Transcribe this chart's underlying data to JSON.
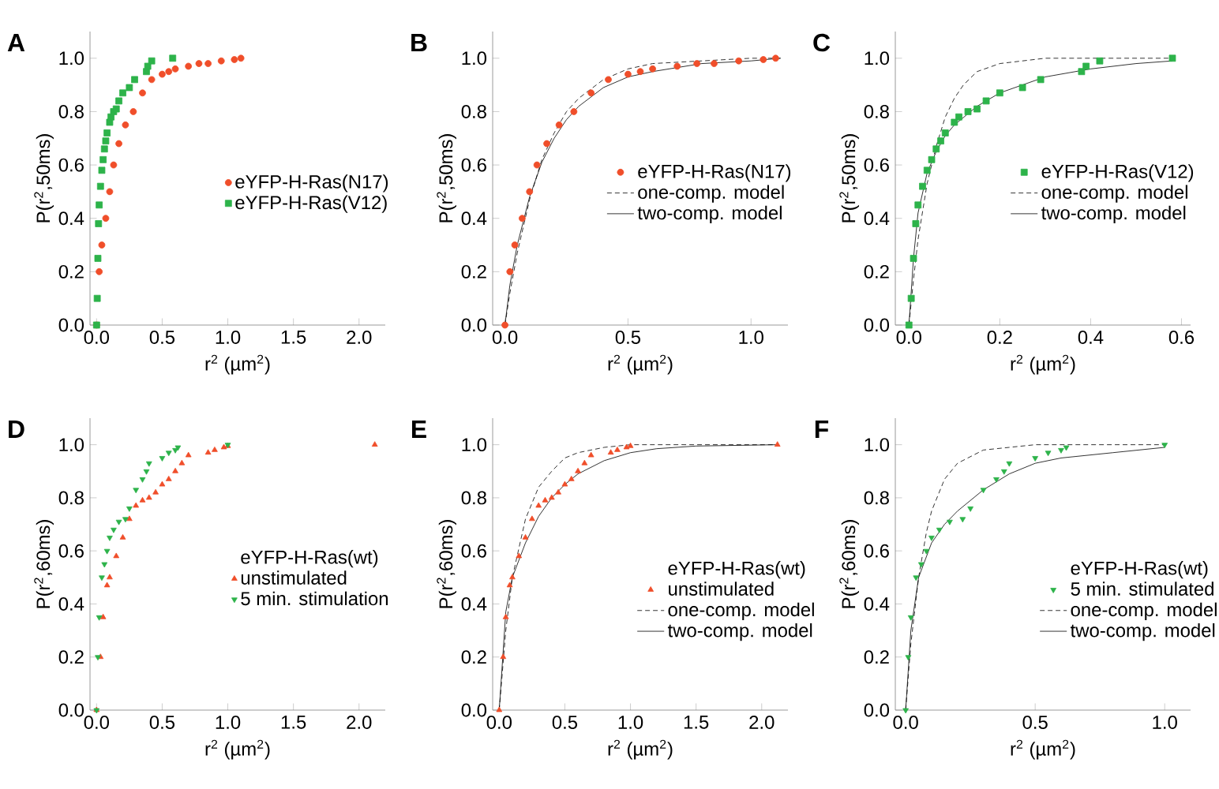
{
  "chart_data": [
    {
      "type": "scatter",
      "title": "A",
      "xlabel": "r$^{2}$ (µm$^{2}$)",
      "ylabel": "P(r$^{2}$,50ms)",
      "xlim": [
        -0.05,
        2.2
      ],
      "ylim": [
        0,
        1.1
      ],
      "legend": "right",
      "xticks": [
        {
          "value": 0,
          "label": "0.0"
        },
        {
          "value": 0.5,
          "label": "0.5"
        },
        {
          "value": 1,
          "label": "1.0"
        },
        {
          "value": 1.5,
          "label": "1.5"
        },
        {
          "value": 2,
          "label": "2.0"
        }
      ],
      "yticks": [
        {
          "value": 0,
          "label": "0.0"
        },
        {
          "value": 0.2,
          "label": "0.2"
        },
        {
          "value": 0.4,
          "label": "0.4"
        },
        {
          "value": 0.6,
          "label": "0.6"
        },
        {
          "value": 0.8,
          "label": "0.8"
        },
        {
          "value": 1,
          "label": "1.0"
        }
      ],
      "series": [
        {
          "name": "eYFP-H-Ras(N17)",
          "type": "scatter",
          "color": "#f04e2a",
          "marker": "circle",
          "x": [
            0.0,
            0.02,
            0.04,
            0.07,
            0.1,
            0.13,
            0.17,
            0.22,
            0.28,
            0.35,
            0.42,
            0.5,
            0.55,
            0.6,
            0.7,
            0.78,
            0.85,
            0.95,
            1.05,
            1.1
          ],
          "values": [
            0,
            0.2,
            0.3,
            0.4,
            0.5,
            0.6,
            0.68,
            0.75,
            0.8,
            0.87,
            0.92,
            0.94,
            0.95,
            0.96,
            0.97,
            0.98,
            0.98,
            0.99,
            0.995,
            1.0
          ]
        },
        {
          "name": "eYFP-H-Ras(V12)",
          "type": "scatter",
          "color": "#2db34a",
          "marker": "square",
          "x": [
            0.0,
            0.005,
            0.01,
            0.015,
            0.02,
            0.03,
            0.04,
            0.05,
            0.06,
            0.07,
            0.08,
            0.1,
            0.11,
            0.13,
            0.15,
            0.17,
            0.2,
            0.25,
            0.29,
            0.38,
            0.39,
            0.42,
            0.58
          ],
          "values": [
            0,
            0.1,
            0.25,
            0.38,
            0.45,
            0.52,
            0.58,
            0.62,
            0.66,
            0.69,
            0.72,
            0.76,
            0.78,
            0.8,
            0.81,
            0.84,
            0.87,
            0.89,
            0.92,
            0.95,
            0.97,
            0.99,
            1.0
          ]
        }
      ]
    },
    {
      "type": "scatter",
      "title": "B",
      "xlabel": "r$^{2}$ (µm$^{2}$)",
      "ylabel": "P(r$^{2}$,50ms)",
      "xlim": [
        -0.05,
        1.15
      ],
      "ylim": [
        0,
        1.1
      ],
      "legend": "right",
      "xticks": [
        {
          "value": 0,
          "label": "0.0"
        },
        {
          "value": 0.5,
          "label": "0.5"
        },
        {
          "value": 1,
          "label": "1.0"
        }
      ],
      "yticks": [
        {
          "value": 0,
          "label": "0.0"
        },
        {
          "value": 0.2,
          "label": "0.2"
        },
        {
          "value": 0.4,
          "label": "0.4"
        },
        {
          "value": 0.6,
          "label": "0.6"
        },
        {
          "value": 0.8,
          "label": "0.8"
        },
        {
          "value": 1,
          "label": "1.0"
        }
      ],
      "series": [
        {
          "name": "eYFP-H-Ras(N17)",
          "type": "scatter",
          "color": "#f04e2a",
          "marker": "circle",
          "x": [
            0.0,
            0.02,
            0.04,
            0.07,
            0.1,
            0.13,
            0.17,
            0.22,
            0.28,
            0.35,
            0.42,
            0.5,
            0.55,
            0.6,
            0.7,
            0.78,
            0.85,
            0.95,
            1.05,
            1.1
          ],
          "values": [
            0,
            0.2,
            0.3,
            0.4,
            0.5,
            0.6,
            0.68,
            0.75,
            0.8,
            0.87,
            0.92,
            0.94,
            0.95,
            0.96,
            0.97,
            0.98,
            0.98,
            0.99,
            0.995,
            1.0
          ]
        },
        {
          "name": "one-comp. model",
          "type": "line",
          "color": "#000000",
          "line_style": "dashed",
          "marker": "none",
          "x": [
            0,
            0.02,
            0.05,
            0.1,
            0.15,
            0.2,
            0.25,
            0.3,
            0.4,
            0.5,
            0.6,
            0.8,
            1.0,
            1.12
          ],
          "values": [
            0,
            0.12,
            0.27,
            0.47,
            0.62,
            0.72,
            0.8,
            0.85,
            0.92,
            0.96,
            0.98,
            0.99,
            1.0,
            1.0
          ]
        },
        {
          "name": "two-comp. model",
          "type": "line",
          "color": "#000000",
          "line_style": "solid",
          "marker": "none",
          "x": [
            0,
            0.02,
            0.05,
            0.1,
            0.15,
            0.2,
            0.25,
            0.3,
            0.4,
            0.5,
            0.6,
            0.8,
            1.0,
            1.12
          ],
          "values": [
            0,
            0.15,
            0.3,
            0.48,
            0.61,
            0.7,
            0.77,
            0.82,
            0.89,
            0.93,
            0.95,
            0.98,
            0.99,
            1.0
          ]
        }
      ]
    },
    {
      "type": "scatter",
      "title": "C",
      "xlabel": "r$^{2}$ (µm$^{2}$)",
      "ylabel": "P(r$^{2}$,50ms)",
      "xlim": [
        -0.03,
        0.62
      ],
      "ylim": [
        0,
        1.1
      ],
      "legend": "right",
      "xticks": [
        {
          "value": 0,
          "label": "0.0"
        },
        {
          "value": 0.2,
          "label": "0.2"
        },
        {
          "value": 0.4,
          "label": "0.4"
        },
        {
          "value": 0.6,
          "label": "0.6"
        }
      ],
      "yticks": [
        {
          "value": 0,
          "label": "0.0"
        },
        {
          "value": 0.2,
          "label": "0.2"
        },
        {
          "value": 0.4,
          "label": "0.4"
        },
        {
          "value": 0.6,
          "label": "0.6"
        },
        {
          "value": 0.8,
          "label": "0.8"
        },
        {
          "value": 1,
          "label": "1.0"
        }
      ],
      "series": [
        {
          "name": "eYFP-H-Ras(V12)",
          "type": "scatter",
          "color": "#2db34a",
          "marker": "square",
          "x": [
            0.0,
            0.005,
            0.01,
            0.015,
            0.02,
            0.03,
            0.04,
            0.05,
            0.06,
            0.07,
            0.08,
            0.1,
            0.11,
            0.13,
            0.15,
            0.17,
            0.2,
            0.25,
            0.29,
            0.38,
            0.39,
            0.42,
            0.58
          ],
          "values": [
            0,
            0.1,
            0.25,
            0.38,
            0.45,
            0.52,
            0.58,
            0.62,
            0.66,
            0.69,
            0.72,
            0.76,
            0.78,
            0.8,
            0.81,
            0.84,
            0.87,
            0.89,
            0.92,
            0.95,
            0.97,
            0.99,
            1.0
          ]
        },
        {
          "name": "one-comp. model",
          "type": "line",
          "color": "#000000",
          "line_style": "dashed",
          "marker": "none",
          "x": [
            0,
            0.01,
            0.02,
            0.04,
            0.06,
            0.08,
            0.1,
            0.12,
            0.15,
            0.2,
            0.25,
            0.3,
            0.4,
            0.58
          ],
          "values": [
            0,
            0.17,
            0.32,
            0.53,
            0.67,
            0.78,
            0.85,
            0.9,
            0.95,
            0.98,
            0.99,
            1.0,
            1.0,
            1.0
          ]
        },
        {
          "name": "two-comp. model",
          "type": "line",
          "color": "#000000",
          "line_style": "solid",
          "marker": "none",
          "x": [
            0,
            0.01,
            0.02,
            0.04,
            0.06,
            0.08,
            0.1,
            0.15,
            0.2,
            0.25,
            0.3,
            0.4,
            0.5,
            0.58
          ],
          "values": [
            0,
            0.25,
            0.42,
            0.57,
            0.65,
            0.71,
            0.75,
            0.82,
            0.87,
            0.9,
            0.93,
            0.96,
            0.98,
            0.99
          ]
        }
      ]
    },
    {
      "type": "scatter",
      "title": "D",
      "xlabel": "r$^{2}$ (µm$^{2}$)",
      "ylabel": "P(r$^{2}$,60ms)",
      "legend_title": "eYFP-H-Ras(wt)",
      "xlim": [
        -0.05,
        2.2
      ],
      "ylim": [
        0,
        1.1
      ],
      "legend": "right",
      "xticks": [
        {
          "value": 0,
          "label": "0.0"
        },
        {
          "value": 0.5,
          "label": "0.5"
        },
        {
          "value": 1,
          "label": "1.0"
        },
        {
          "value": 1.5,
          "label": "1.5"
        },
        {
          "value": 2,
          "label": "2.0"
        }
      ],
      "yticks": [
        {
          "value": 0,
          "label": "0.0"
        },
        {
          "value": 0.2,
          "label": "0.2"
        },
        {
          "value": 0.4,
          "label": "0.4"
        },
        {
          "value": 0.6,
          "label": "0.6"
        },
        {
          "value": 0.8,
          "label": "0.8"
        },
        {
          "value": 1,
          "label": "1.0"
        }
      ],
      "series": [
        {
          "name": "unstimulated",
          "type": "scatter",
          "color": "#f04e2a",
          "marker": "triangle",
          "x": [
            0.0,
            0.03,
            0.05,
            0.08,
            0.1,
            0.15,
            0.2,
            0.25,
            0.3,
            0.35,
            0.4,
            0.45,
            0.5,
            0.55,
            0.6,
            0.65,
            0.7,
            0.85,
            0.9,
            0.97,
            1.0,
            2.12
          ],
          "values": [
            0,
            0.2,
            0.35,
            0.47,
            0.5,
            0.58,
            0.65,
            0.72,
            0.77,
            0.79,
            0.8,
            0.82,
            0.85,
            0.87,
            0.9,
            0.93,
            0.96,
            0.97,
            0.98,
            0.99,
            0.995,
            1.0
          ]
        },
        {
          "name": "5 min. stimulation",
          "type": "scatter",
          "color": "#2db34a",
          "marker": "triangle-down",
          "x": [
            0.0,
            0.01,
            0.02,
            0.04,
            0.06,
            0.08,
            0.1,
            0.13,
            0.17,
            0.22,
            0.25,
            0.3,
            0.35,
            0.38,
            0.4,
            0.5,
            0.55,
            0.6,
            0.62,
            1.0
          ],
          "values": [
            0,
            0.2,
            0.35,
            0.5,
            0.55,
            0.6,
            0.65,
            0.68,
            0.71,
            0.72,
            0.76,
            0.83,
            0.87,
            0.9,
            0.93,
            0.95,
            0.97,
            0.98,
            0.99,
            1.0
          ]
        }
      ]
    },
    {
      "type": "scatter",
      "title": "E",
      "xlabel": "r$^{2}$ (µm$^{2}$)",
      "ylabel": "P(r$^{2}$,60ms)",
      "legend_title": "eYFP-H-Ras(wt)",
      "xlim": [
        -0.05,
        2.2
      ],
      "ylim": [
        0,
        1.1
      ],
      "legend": "bottom right",
      "xticks": [
        {
          "value": 0,
          "label": "0.0"
        },
        {
          "value": 0.5,
          "label": "0.5"
        },
        {
          "value": 1,
          "label": "1.0"
        },
        {
          "value": 1.5,
          "label": "1.5"
        },
        {
          "value": 2,
          "label": "2.0"
        }
      ],
      "yticks": [
        {
          "value": 0,
          "label": "0.0"
        },
        {
          "value": 0.2,
          "label": "0.2"
        },
        {
          "value": 0.4,
          "label": "0.4"
        },
        {
          "value": 0.6,
          "label": "0.6"
        },
        {
          "value": 0.8,
          "label": "0.8"
        },
        {
          "value": 1,
          "label": "1.0"
        }
      ],
      "series": [
        {
          "name": "unstimulated",
          "type": "scatter",
          "color": "#f04e2a",
          "marker": "triangle",
          "x": [
            0.0,
            0.03,
            0.05,
            0.08,
            0.1,
            0.15,
            0.2,
            0.25,
            0.3,
            0.35,
            0.4,
            0.45,
            0.5,
            0.55,
            0.6,
            0.65,
            0.7,
            0.85,
            0.9,
            0.97,
            1.0,
            2.12
          ],
          "values": [
            0,
            0.2,
            0.35,
            0.47,
            0.5,
            0.58,
            0.65,
            0.72,
            0.77,
            0.79,
            0.8,
            0.82,
            0.85,
            0.87,
            0.9,
            0.93,
            0.96,
            0.97,
            0.98,
            0.99,
            0.995,
            1.0
          ]
        },
        {
          "name": "one-comp. model",
          "type": "line",
          "color": "#000000",
          "line_style": "dashed",
          "marker": "none",
          "x": [
            0,
            0.05,
            0.1,
            0.2,
            0.3,
            0.4,
            0.5,
            0.6,
            0.8,
            1.0,
            1.5,
            2.12
          ],
          "values": [
            0,
            0.3,
            0.5,
            0.72,
            0.84,
            0.9,
            0.95,
            0.97,
            0.99,
            1.0,
            1.0,
            1.0
          ]
        },
        {
          "name": "two-comp. model",
          "type": "line",
          "color": "#000000",
          "line_style": "solid",
          "marker": "none",
          "x": [
            0,
            0.05,
            0.1,
            0.2,
            0.3,
            0.4,
            0.5,
            0.6,
            0.8,
            1.0,
            1.2,
            1.5,
            2.12
          ],
          "values": [
            0,
            0.37,
            0.5,
            0.63,
            0.73,
            0.8,
            0.85,
            0.89,
            0.94,
            0.97,
            0.985,
            0.995,
            1.0
          ]
        }
      ]
    },
    {
      "type": "scatter",
      "title": "F",
      "xlabel": "r$^{2}$ (µm$^{2}$)",
      "ylabel": "P(r$^{2}$,60ms)",
      "legend_title": "eYFP-H-Ras(wt)",
      "xlim": [
        -0.04,
        1.1
      ],
      "ylim": [
        0,
        1.1
      ],
      "legend": "bottom right",
      "xticks": [
        {
          "value": 0,
          "label": "0.0"
        },
        {
          "value": 0.5,
          "label": "0.5"
        },
        {
          "value": 1,
          "label": "1.0"
        }
      ],
      "yticks": [
        {
          "value": 0,
          "label": "0.0"
        },
        {
          "value": 0.2,
          "label": "0.2"
        },
        {
          "value": 0.4,
          "label": "0.4"
        },
        {
          "value": 0.6,
          "label": "0.6"
        },
        {
          "value": 0.8,
          "label": "0.8"
        },
        {
          "value": 1,
          "label": "1.0"
        }
      ],
      "series": [
        {
          "name": "5 min. stimulated",
          "type": "scatter",
          "color": "#2db34a",
          "marker": "triangle-down",
          "x": [
            0.0,
            0.01,
            0.02,
            0.04,
            0.06,
            0.08,
            0.1,
            0.13,
            0.17,
            0.22,
            0.25,
            0.3,
            0.35,
            0.38,
            0.4,
            0.5,
            0.55,
            0.6,
            0.62,
            1.0
          ],
          "values": [
            0,
            0.2,
            0.35,
            0.5,
            0.55,
            0.6,
            0.65,
            0.68,
            0.71,
            0.72,
            0.76,
            0.83,
            0.87,
            0.9,
            0.93,
            0.95,
            0.97,
            0.98,
            0.99,
            1.0
          ]
        },
        {
          "name": "one-comp. model",
          "type": "line",
          "color": "#000000",
          "line_style": "dashed",
          "marker": "none",
          "x": [
            0,
            0.02,
            0.05,
            0.08,
            0.1,
            0.15,
            0.2,
            0.3,
            0.4,
            0.5,
            0.7,
            1.0
          ],
          "values": [
            0,
            0.25,
            0.5,
            0.67,
            0.75,
            0.87,
            0.93,
            0.98,
            0.99,
            1.0,
            1.0,
            1.0
          ]
        },
        {
          "name": "two-comp. model",
          "type": "line",
          "color": "#000000",
          "line_style": "solid",
          "marker": "none",
          "x": [
            0,
            0.02,
            0.05,
            0.1,
            0.15,
            0.2,
            0.3,
            0.4,
            0.5,
            0.6,
            0.8,
            1.0
          ],
          "values": [
            0,
            0.3,
            0.5,
            0.63,
            0.7,
            0.75,
            0.83,
            0.89,
            0.93,
            0.95,
            0.97,
            0.99
          ]
        }
      ]
    }
  ]
}
